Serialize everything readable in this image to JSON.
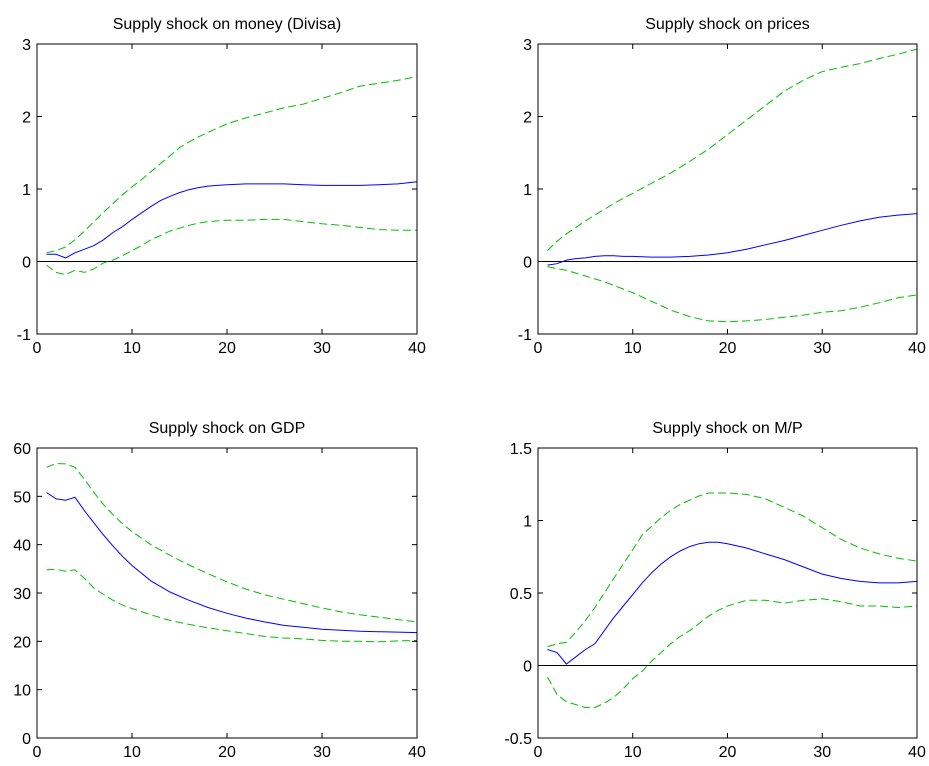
{
  "chart_data": [
    {
      "type": "line",
      "title": "Supply shock on money (Divisa)",
      "xlim": [
        0,
        40
      ],
      "ylim": [
        -1,
        3
      ],
      "xticks": [
        0,
        10,
        20,
        30,
        40
      ],
      "yticks": [
        -1,
        0,
        1,
        2,
        3
      ],
      "zero_line": true,
      "series": [
        {
          "style": "solid",
          "color": "#0000ff",
          "x": [
            1,
            2,
            3,
            4,
            5,
            6,
            7,
            8,
            9,
            10,
            11,
            12,
            13,
            14,
            15,
            16,
            17,
            18,
            19,
            20,
            22,
            24,
            26,
            28,
            30,
            32,
            34,
            36,
            38,
            40
          ],
          "y": [
            0.1,
            0.1,
            0.05,
            0.12,
            0.17,
            0.22,
            0.3,
            0.4,
            0.48,
            0.58,
            0.67,
            0.76,
            0.84,
            0.9,
            0.95,
            0.99,
            1.02,
            1.04,
            1.05,
            1.06,
            1.07,
            1.07,
            1.07,
            1.06,
            1.05,
            1.05,
            1.05,
            1.06,
            1.07,
            1.1
          ]
        },
        {
          "style": "dashed",
          "color": "#00c000",
          "x": [
            1,
            2,
            3,
            4,
            5,
            6,
            7,
            8,
            9,
            10,
            11,
            12,
            13,
            14,
            15,
            16,
            17,
            18,
            19,
            20,
            22,
            24,
            26,
            28,
            30,
            32,
            34,
            36,
            38,
            40
          ],
          "y": [
            0.12,
            0.15,
            0.2,
            0.3,
            0.42,
            0.55,
            0.68,
            0.8,
            0.92,
            1.03,
            1.13,
            1.24,
            1.35,
            1.46,
            1.57,
            1.65,
            1.72,
            1.78,
            1.84,
            1.9,
            1.98,
            2.05,
            2.12,
            2.17,
            2.25,
            2.33,
            2.42,
            2.46,
            2.5,
            2.55
          ]
        },
        {
          "style": "dashed",
          "color": "#00c000",
          "x": [
            1,
            2,
            3,
            4,
            5,
            6,
            7,
            8,
            9,
            10,
            11,
            12,
            13,
            14,
            15,
            16,
            17,
            18,
            19,
            20,
            22,
            24,
            26,
            28,
            30,
            32,
            34,
            36,
            38,
            40
          ],
          "y": [
            -0.05,
            -0.15,
            -0.18,
            -0.12,
            -0.15,
            -0.1,
            -0.02,
            0.02,
            0.08,
            0.15,
            0.22,
            0.3,
            0.36,
            0.42,
            0.46,
            0.5,
            0.53,
            0.55,
            0.56,
            0.57,
            0.57,
            0.58,
            0.58,
            0.55,
            0.52,
            0.5,
            0.47,
            0.44,
            0.43,
            0.43
          ]
        }
      ]
    },
    {
      "type": "line",
      "title": "Supply shock on prices",
      "xlim": [
        0,
        40
      ],
      "ylim": [
        -1,
        3
      ],
      "xticks": [
        0,
        10,
        20,
        30,
        40
      ],
      "yticks": [
        -1,
        0,
        1,
        2,
        3
      ],
      "zero_line": true,
      "series": [
        {
          "style": "solid",
          "color": "#0000ff",
          "x": [
            1,
            2,
            3,
            4,
            5,
            6,
            7,
            8,
            9,
            10,
            12,
            14,
            16,
            18,
            20,
            22,
            24,
            26,
            28,
            30,
            32,
            34,
            36,
            38,
            40
          ],
          "y": [
            -0.05,
            -0.03,
            0.02,
            0.04,
            0.05,
            0.07,
            0.08,
            0.08,
            0.07,
            0.07,
            0.06,
            0.06,
            0.07,
            0.09,
            0.12,
            0.17,
            0.23,
            0.29,
            0.36,
            0.43,
            0.5,
            0.56,
            0.61,
            0.64,
            0.66
          ]
        },
        {
          "style": "dashed",
          "color": "#00c000",
          "x": [
            1,
            2,
            3,
            4,
            5,
            6,
            7,
            8,
            9,
            10,
            12,
            14,
            16,
            18,
            20,
            22,
            24,
            26,
            28,
            30,
            32,
            34,
            36,
            38,
            40
          ],
          "y": [
            0.15,
            0.28,
            0.38,
            0.47,
            0.56,
            0.64,
            0.72,
            0.8,
            0.87,
            0.94,
            1.08,
            1.22,
            1.38,
            1.55,
            1.75,
            1.95,
            2.15,
            2.35,
            2.5,
            2.62,
            2.68,
            2.73,
            2.8,
            2.86,
            2.93
          ]
        },
        {
          "style": "dashed",
          "color": "#00c000",
          "x": [
            1,
            2,
            3,
            4,
            5,
            6,
            7,
            8,
            9,
            10,
            12,
            14,
            16,
            18,
            20,
            22,
            24,
            26,
            28,
            30,
            32,
            34,
            36,
            38,
            40
          ],
          "y": [
            -0.07,
            -0.1,
            -0.12,
            -0.16,
            -0.2,
            -0.24,
            -0.28,
            -0.33,
            -0.38,
            -0.43,
            -0.55,
            -0.67,
            -0.76,
            -0.82,
            -0.83,
            -0.82,
            -0.8,
            -0.77,
            -0.74,
            -0.7,
            -0.68,
            -0.63,
            -0.57,
            -0.5,
            -0.46
          ]
        }
      ]
    },
    {
      "type": "line",
      "title": "Supply shock on GDP",
      "xlim": [
        0,
        40
      ],
      "ylim": [
        0,
        60
      ],
      "xticks": [
        0,
        10,
        20,
        30,
        40
      ],
      "yticks": [
        0,
        10,
        20,
        30,
        40,
        50,
        60
      ],
      "zero_line": false,
      "series": [
        {
          "style": "solid",
          "color": "#0000ff",
          "x": [
            1,
            2,
            3,
            4,
            5,
            6,
            7,
            8,
            9,
            10,
            12,
            14,
            16,
            18,
            20,
            22,
            24,
            26,
            28,
            30,
            32,
            34,
            36,
            38,
            40
          ],
          "y": [
            50.8,
            49.5,
            49.2,
            49.8,
            47,
            44.5,
            42,
            39.7,
            37.6,
            35.7,
            32.5,
            30.2,
            28.5,
            27,
            25.8,
            24.8,
            24,
            23.3,
            22.9,
            22.5,
            22.3,
            22.1,
            22,
            21.9,
            21.8
          ]
        },
        {
          "style": "dashed",
          "color": "#00c000",
          "x": [
            1,
            2,
            3,
            4,
            5,
            6,
            7,
            8,
            9,
            10,
            12,
            14,
            16,
            18,
            20,
            22,
            24,
            26,
            28,
            30,
            32,
            34,
            36,
            38,
            40
          ],
          "y": [
            56,
            56.8,
            56.7,
            56,
            53.5,
            50.8,
            48.3,
            46.2,
            44.3,
            42.7,
            40,
            37.8,
            35.8,
            34,
            32.3,
            30.8,
            29.6,
            28.7,
            27.8,
            26.9,
            26.1,
            25.5,
            25,
            24.5,
            24
          ]
        },
        {
          "style": "dashed",
          "color": "#00c000",
          "x": [
            1,
            2,
            3,
            4,
            5,
            6,
            7,
            8,
            9,
            10,
            12,
            14,
            16,
            18,
            20,
            22,
            24,
            26,
            28,
            30,
            32,
            34,
            36,
            38,
            40
          ],
          "y": [
            34.8,
            34.9,
            34.5,
            34.8,
            33,
            31,
            29.7,
            28.5,
            27.5,
            26.8,
            25.5,
            24.3,
            23.5,
            22.8,
            22.2,
            21.6,
            21,
            20.7,
            20.5,
            20.2,
            20,
            20,
            19.9,
            20.1,
            20.2
          ]
        }
      ]
    },
    {
      "type": "line",
      "title": "Supply shock on M/P",
      "xlim": [
        0,
        40
      ],
      "ylim": [
        -0.5,
        1.5
      ],
      "xticks": [
        0,
        10,
        20,
        30,
        40
      ],
      "yticks": [
        -0.5,
        0,
        0.5,
        1,
        1.5
      ],
      "zero_line": true,
      "series": [
        {
          "style": "solid",
          "color": "#0000ff",
          "x": [
            1,
            2,
            3,
            4,
            5,
            6,
            7,
            8,
            9,
            10,
            11,
            12,
            13,
            14,
            15,
            16,
            17,
            18,
            19,
            20,
            22,
            24,
            26,
            28,
            30,
            32,
            34,
            36,
            38,
            40
          ],
          "y": [
            0.11,
            0.09,
            0.01,
            0.06,
            0.11,
            0.15,
            0.24,
            0.33,
            0.41,
            0.49,
            0.57,
            0.64,
            0.7,
            0.75,
            0.79,
            0.82,
            0.84,
            0.85,
            0.85,
            0.84,
            0.81,
            0.77,
            0.73,
            0.68,
            0.63,
            0.6,
            0.58,
            0.57,
            0.57,
            0.58
          ]
        },
        {
          "style": "dashed",
          "color": "#00c000",
          "x": [
            1,
            2,
            3,
            4,
            5,
            6,
            7,
            8,
            9,
            10,
            11,
            12,
            13,
            14,
            15,
            16,
            17,
            18,
            19,
            20,
            22,
            24,
            26,
            28,
            30,
            32,
            34,
            36,
            38,
            40
          ],
          "y": [
            0.13,
            0.15,
            0.16,
            0.23,
            0.31,
            0.4,
            0.5,
            0.6,
            0.7,
            0.8,
            0.9,
            0.96,
            1.02,
            1.07,
            1.11,
            1.14,
            1.17,
            1.19,
            1.19,
            1.19,
            1.18,
            1.15,
            1.09,
            1.03,
            0.95,
            0.87,
            0.81,
            0.77,
            0.74,
            0.72
          ]
        },
        {
          "style": "dashed",
          "color": "#00c000",
          "x": [
            1,
            2,
            3,
            4,
            5,
            6,
            7,
            8,
            9,
            10,
            11,
            12,
            13,
            14,
            15,
            16,
            17,
            18,
            19,
            20,
            22,
            24,
            26,
            28,
            30,
            32,
            34,
            36,
            38,
            40
          ],
          "y": [
            -0.08,
            -0.2,
            -0.25,
            -0.27,
            -0.29,
            -0.29,
            -0.26,
            -0.22,
            -0.16,
            -0.09,
            -0.04,
            0.03,
            0.09,
            0.15,
            0.2,
            0.24,
            0.29,
            0.34,
            0.38,
            0.41,
            0.45,
            0.45,
            0.43,
            0.45,
            0.46,
            0.44,
            0.41,
            0.41,
            0.4,
            0.41
          ]
        }
      ]
    }
  ]
}
